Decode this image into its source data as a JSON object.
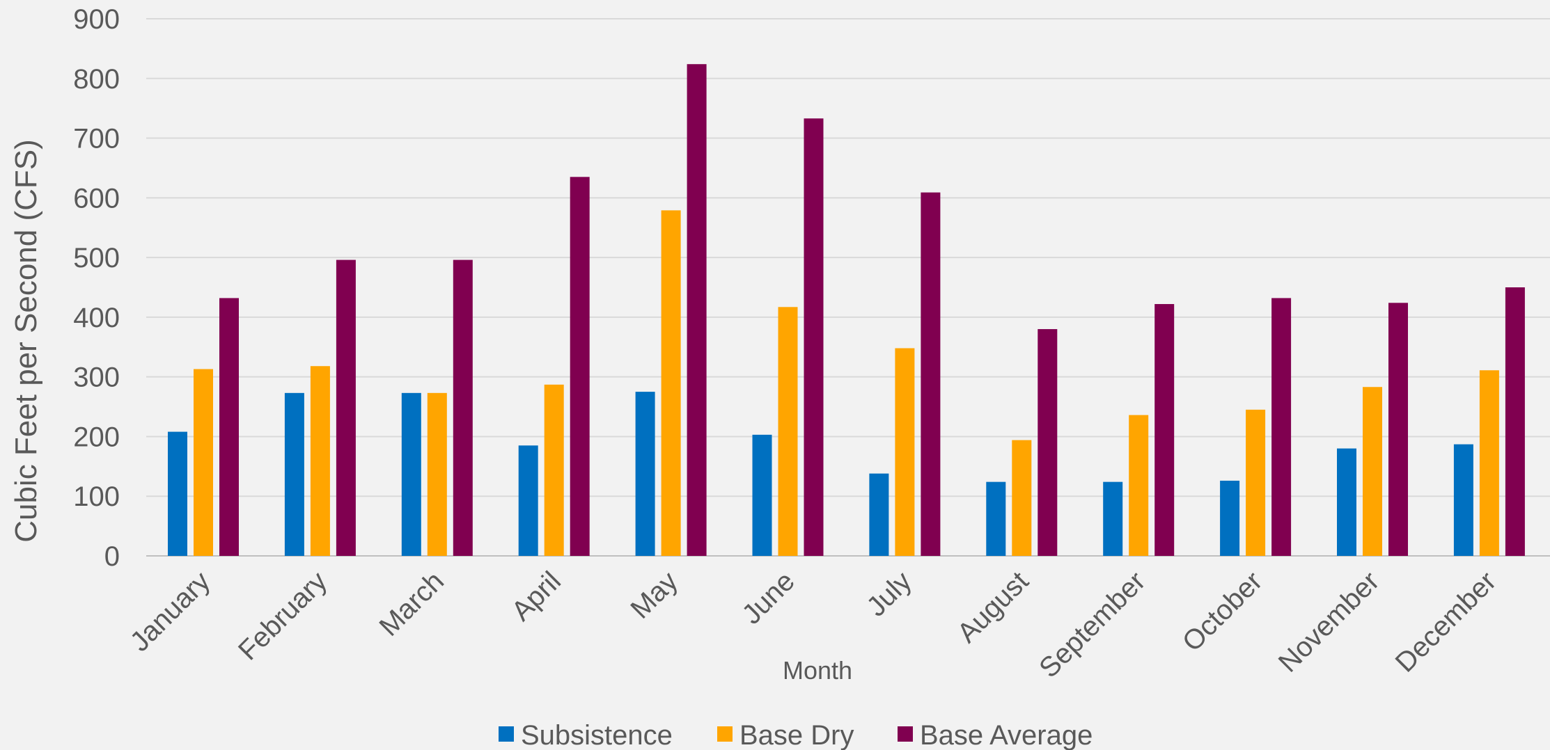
{
  "chart_data": {
    "type": "bar",
    "title": "",
    "xlabel": "Month",
    "ylabel": "Cubic Feet per Second (CFS)",
    "ylim": [
      0,
      900
    ],
    "yticks": [
      0,
      100,
      200,
      300,
      400,
      500,
      600,
      700,
      800,
      900
    ],
    "grid": true,
    "legend_position": "bottom",
    "categories": [
      "January",
      "February",
      "March",
      "April",
      "May",
      "June",
      "July",
      "August",
      "September",
      "October",
      "November",
      "December"
    ],
    "series": [
      {
        "name": "Subsistence",
        "color": "#0070c0",
        "values": [
          208,
          273,
          273,
          185,
          275,
          203,
          138,
          124,
          124,
          126,
          180,
          187
        ]
      },
      {
        "name": "Base Dry",
        "color": "#ffa500",
        "values": [
          313,
          318,
          273,
          287,
          579,
          417,
          348,
          194,
          236,
          245,
          283,
          311
        ]
      },
      {
        "name": "Base Average",
        "color": "#800050",
        "values": [
          432,
          496,
          496,
          635,
          824,
          733,
          609,
          380,
          422,
          432,
          424,
          450
        ]
      }
    ]
  }
}
